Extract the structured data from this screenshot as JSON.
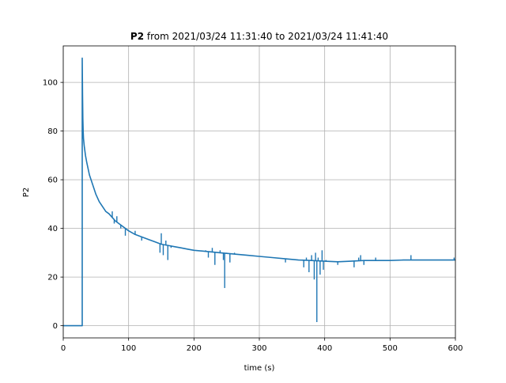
{
  "figure": {
    "title_bold": "P2",
    "title_rest": " from 2021/03/24 11:31:40 to 2021/03/24 11:41:40"
  },
  "chart_data": {
    "type": "line",
    "title": "P2 from 2021/03/24 11:31:40 to 2021/03/24 11:41:40",
    "xlabel": "time (s)",
    "ylabel": "P2",
    "xlim": [
      0,
      600
    ],
    "ylim": [
      -5,
      115
    ],
    "xticks": [
      0,
      100,
      200,
      300,
      400,
      500,
      600
    ],
    "yticks": [
      0,
      20,
      40,
      60,
      80,
      100
    ],
    "grid": true,
    "line_color": "#1f77b4",
    "series": [
      {
        "x": [
          0,
          29,
          29,
          29.5,
          30,
          30.5,
          31,
          32,
          34,
          36,
          40,
          45,
          50,
          55,
          60,
          65,
          70,
          75,
          80,
          90,
          100,
          110,
          120,
          130,
          140,
          150,
          160,
          170,
          180,
          190,
          200,
          220,
          240,
          260,
          280,
          300,
          320,
          340,
          360,
          380,
          400,
          420,
          440,
          460,
          480,
          500,
          520,
          540,
          560,
          580,
          600
        ],
        "y": [
          0,
          0,
          110,
          95,
          85,
          80,
          77,
          74,
          70,
          67,
          62,
          58,
          54,
          51,
          49,
          47,
          46,
          44.5,
          43,
          41,
          39,
          37.5,
          36.5,
          35.5,
          34.5,
          33.5,
          33,
          32.5,
          32,
          31.5,
          31,
          30.5,
          30,
          29.5,
          29,
          28.5,
          28,
          27.5,
          27,
          26.8,
          26.5,
          26.3,
          26.5,
          26.8,
          26.8,
          26.8,
          27,
          27,
          27,
          27,
          27
        ]
      }
    ],
    "spikes": [
      {
        "x": 75,
        "y": 47
      },
      {
        "x": 78,
        "y": 42
      },
      {
        "x": 82,
        "y": 45
      },
      {
        "x": 88,
        "y": 40
      },
      {
        "x": 95,
        "y": 37
      },
      {
        "x": 110,
        "y": 39
      },
      {
        "x": 120,
        "y": 35
      },
      {
        "x": 148,
        "y": 30
      },
      {
        "x": 150,
        "y": 38
      },
      {
        "x": 153,
        "y": 29
      },
      {
        "x": 157,
        "y": 35
      },
      {
        "x": 160,
        "y": 27
      },
      {
        "x": 165,
        "y": 32
      },
      {
        "x": 218,
        "y": 31
      },
      {
        "x": 222,
        "y": 28
      },
      {
        "x": 228,
        "y": 32
      },
      {
        "x": 232,
        "y": 25
      },
      {
        "x": 240,
        "y": 31
      },
      {
        "x": 245,
        "y": 27
      },
      {
        "x": 247,
        "y": 15.5
      },
      {
        "x": 250,
        "y": 30
      },
      {
        "x": 255,
        "y": 26
      },
      {
        "x": 262,
        "y": 30
      },
      {
        "x": 340,
        "y": 26
      },
      {
        "x": 368,
        "y": 24
      },
      {
        "x": 372,
        "y": 28
      },
      {
        "x": 376,
        "y": 22
      },
      {
        "x": 380,
        "y": 29
      },
      {
        "x": 384,
        "y": 19
      },
      {
        "x": 386,
        "y": 30
      },
      {
        "x": 388,
        "y": 1.5
      },
      {
        "x": 390,
        "y": 28
      },
      {
        "x": 393,
        "y": 21
      },
      {
        "x": 396,
        "y": 31
      },
      {
        "x": 398,
        "y": 23
      },
      {
        "x": 402,
        "y": 27
      },
      {
        "x": 420,
        "y": 25
      },
      {
        "x": 445,
        "y": 24
      },
      {
        "x": 452,
        "y": 28
      },
      {
        "x": 455,
        "y": 29
      },
      {
        "x": 460,
        "y": 25
      },
      {
        "x": 478,
        "y": 28
      },
      {
        "x": 532,
        "y": 29
      },
      {
        "x": 598,
        "y": 28
      }
    ]
  }
}
